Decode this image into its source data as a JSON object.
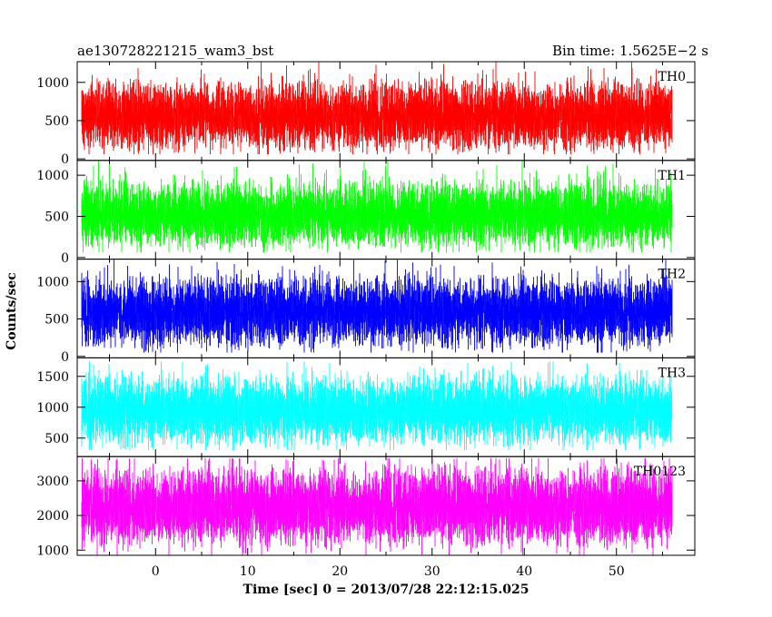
{
  "header": {
    "left": "ae130728221215_wam3_bst",
    "right": "Bin time: 1.5625E−2 s"
  },
  "chart_data": {
    "type": "line",
    "title": "ae130728221215_wam3_bst",
    "subtitle": "Bin time: 1.5625E−2 s",
    "xlabel": "Time [sec] 0 = 2013/07/28 22:12:15.025",
    "ylabel": "Counts/sec",
    "xlim": [
      -8.5,
      58.5
    ],
    "x_ticks": [
      0,
      10,
      20,
      30,
      40,
      50
    ],
    "x_range_data": [
      -8,
      56
    ],
    "grid": false,
    "panels": [
      {
        "name": "TH0",
        "color": "#ff0000",
        "ylim": [
          -20,
          1270
        ],
        "y_ticks": [
          0,
          500,
          1000
        ],
        "mean": 560,
        "noise_sd": 190,
        "min_clip": 60,
        "max_clip": 1270
      },
      {
        "name": "TH1",
        "color": "#00ff00",
        "ylim": [
          -20,
          1180
        ],
        "y_ticks": [
          0,
          500,
          1000
        ],
        "mean": 520,
        "noise_sd": 175,
        "min_clip": 60,
        "max_clip": 1180
      },
      {
        "name": "TH2",
        "color": "#0000ff",
        "ylim": [
          -20,
          1300
        ],
        "y_ticks": [
          0,
          500,
          1000
        ],
        "mean": 600,
        "noise_sd": 200,
        "min_clip": 50,
        "max_clip": 1300
      },
      {
        "name": "TH3",
        "color": "#00ffff",
        "ylim": [
          200,
          1800
        ],
        "y_ticks": [
          500,
          1000,
          1500
        ],
        "mean": 950,
        "noise_sd": 240,
        "min_clip": 300,
        "max_clip": 1740
      },
      {
        "name": "TH0123",
        "color": "#ff00ff",
        "ylim": [
          850,
          3700
        ],
        "y_ticks": [
          1000,
          2000,
          3000
        ],
        "mean": 2250,
        "noise_sd": 480,
        "min_clip": 800,
        "max_clip": 3650
      }
    ]
  }
}
